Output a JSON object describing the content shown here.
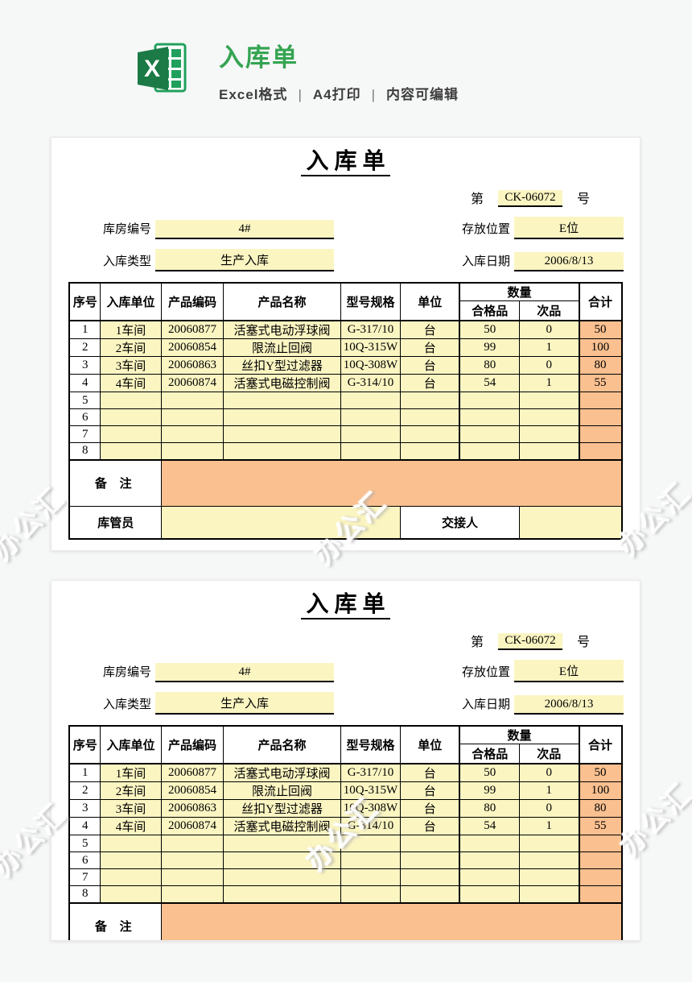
{
  "page": {
    "background": "#f6f7f7",
    "watermark_text": "办公汇"
  },
  "header": {
    "logo_icon": "excel-logo",
    "title": "入库单",
    "subtitle_items": [
      "Excel格式",
      "A4打印",
      "内容可编辑"
    ],
    "subtitle_separator": "|"
  },
  "form": {
    "title": "入 库 单",
    "doc_no_prefix": "第",
    "doc_no_value": "CK-06072",
    "doc_no_suffix": "号",
    "fields": [
      {
        "label": "库房编号",
        "value": "4#"
      },
      {
        "label": "存放位置",
        "value": "E位"
      },
      {
        "label": "入库类型",
        "value": "生产入库"
      },
      {
        "label": "入库日期",
        "value": "2006/8/13"
      }
    ],
    "table": {
      "headers": {
        "seq": "序号",
        "unit": "入库单位",
        "code": "产品编码",
        "name": "产品名称",
        "spec": "型号规格",
        "measure": "单位",
        "qty_group": "数量",
        "qualified": "合格品",
        "defective": "次品",
        "total": "合计"
      },
      "rows": [
        [
          "1",
          "1车间",
          "20060877",
          "活塞式电动浮球阀",
          "G-317/10",
          "台",
          "50",
          "0",
          "50"
        ],
        [
          "2",
          "2车间",
          "20060854",
          "限流止回阀",
          "10Q-315W",
          "台",
          "99",
          "1",
          "100"
        ],
        [
          "3",
          "3车间",
          "20060863",
          "丝扣Y型过滤器",
          "10Q-308W",
          "台",
          "80",
          "0",
          "80"
        ],
        [
          "4",
          "4车间",
          "20060874",
          "活塞式电磁控制阀",
          "G-314/10",
          "台",
          "54",
          "1",
          "55"
        ],
        [
          "5",
          "",
          "",
          "",
          "",
          "",
          "",
          "",
          ""
        ],
        [
          "6",
          "",
          "",
          "",
          "",
          "",
          "",
          "",
          ""
        ],
        [
          "7",
          "",
          "",
          "",
          "",
          "",
          "",
          "",
          ""
        ],
        [
          "8",
          "",
          "",
          "",
          "",
          "",
          "",
          "",
          ""
        ]
      ],
      "remark_label": "备  注",
      "keeper_label": "库管员",
      "handover_label": "交接人"
    }
  },
  "colors": {
    "cell_yellow": "#FBF5C2",
    "cell_orange": "#FAC090",
    "title_green": "#35A452"
  }
}
